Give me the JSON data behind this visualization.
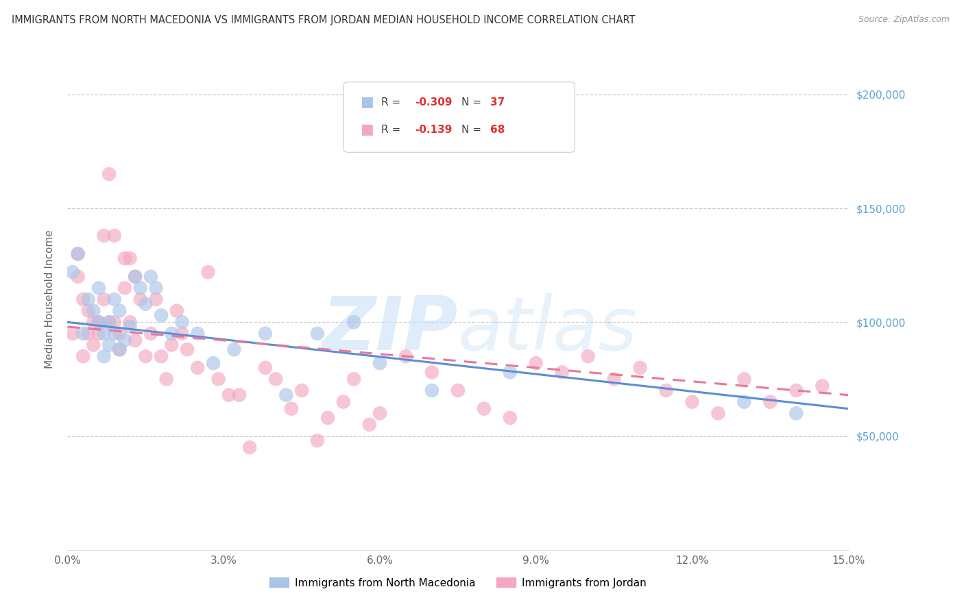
{
  "title": "IMMIGRANTS FROM NORTH MACEDONIA VS IMMIGRANTS FROM JORDAN MEDIAN HOUSEHOLD INCOME CORRELATION CHART",
  "source": "Source: ZipAtlas.com",
  "ylabel": "Median Household Income",
  "y_ticks": [
    50000,
    100000,
    150000,
    200000
  ],
  "y_tick_labels": [
    "$50,000",
    "$100,000",
    "$150,000",
    "$200,000"
  ],
  "x_ticks": [
    0.0,
    0.03,
    0.06,
    0.09,
    0.12,
    0.15
  ],
  "x_tick_labels": [
    "0.0%",
    "3.0%",
    "6.0%",
    "9.0%",
    "12.0%",
    "15.0%"
  ],
  "xlim": [
    0.0,
    0.15
  ],
  "ylim": [
    0,
    220000
  ],
  "watermark_zip": "ZIP",
  "watermark_atlas": "atlas",
  "series1_name": "Immigrants from North Macedonia",
  "series1_color": "#aac4e8",
  "series1_line_color": "#5b8dd9",
  "series2_name": "Immigrants from Jordan",
  "series2_color": "#f4a8bf",
  "series2_line_color": "#e87899",
  "north_macedonia_x": [
    0.001,
    0.002,
    0.003,
    0.004,
    0.005,
    0.006,
    0.006,
    0.007,
    0.007,
    0.008,
    0.008,
    0.009,
    0.009,
    0.01,
    0.01,
    0.011,
    0.012,
    0.013,
    0.014,
    0.015,
    0.016,
    0.017,
    0.018,
    0.02,
    0.022,
    0.025,
    0.028,
    0.032,
    0.038,
    0.042,
    0.048,
    0.055,
    0.06,
    0.07,
    0.085,
    0.13,
    0.14
  ],
  "north_macedonia_y": [
    122000,
    130000,
    95000,
    110000,
    105000,
    100000,
    115000,
    85000,
    95000,
    100000,
    90000,
    110000,
    95000,
    88000,
    105000,
    92000,
    98000,
    120000,
    115000,
    108000,
    120000,
    115000,
    103000,
    95000,
    100000,
    95000,
    82000,
    88000,
    95000,
    68000,
    95000,
    100000,
    82000,
    70000,
    78000,
    65000,
    60000
  ],
  "jordan_x": [
    0.001,
    0.002,
    0.002,
    0.003,
    0.003,
    0.004,
    0.004,
    0.005,
    0.005,
    0.006,
    0.006,
    0.007,
    0.007,
    0.008,
    0.008,
    0.009,
    0.009,
    0.01,
    0.01,
    0.011,
    0.011,
    0.012,
    0.012,
    0.013,
    0.013,
    0.014,
    0.015,
    0.016,
    0.017,
    0.018,
    0.019,
    0.02,
    0.021,
    0.022,
    0.023,
    0.025,
    0.027,
    0.029,
    0.031,
    0.033,
    0.035,
    0.038,
    0.04,
    0.043,
    0.045,
    0.048,
    0.05,
    0.053,
    0.055,
    0.058,
    0.06,
    0.065,
    0.07,
    0.075,
    0.08,
    0.085,
    0.09,
    0.095,
    0.1,
    0.105,
    0.11,
    0.115,
    0.12,
    0.125,
    0.13,
    0.135,
    0.14,
    0.145
  ],
  "jordan_y": [
    95000,
    130000,
    120000,
    110000,
    85000,
    105000,
    95000,
    100000,
    90000,
    100000,
    95000,
    110000,
    138000,
    165000,
    100000,
    138000,
    100000,
    95000,
    88000,
    128000,
    115000,
    128000,
    100000,
    120000,
    92000,
    110000,
    85000,
    95000,
    110000,
    85000,
    75000,
    90000,
    105000,
    95000,
    88000,
    80000,
    122000,
    75000,
    68000,
    68000,
    45000,
    80000,
    75000,
    62000,
    70000,
    48000,
    58000,
    65000,
    75000,
    55000,
    60000,
    85000,
    78000,
    70000,
    62000,
    58000,
    82000,
    78000,
    85000,
    75000,
    80000,
    70000,
    65000,
    60000,
    75000,
    65000,
    70000,
    72000
  ],
  "nm_trend_x0": 0.0,
  "nm_trend_y0": 100000,
  "nm_trend_x1": 0.15,
  "nm_trend_y1": 62000,
  "j_trend_x0": 0.0,
  "j_trend_y0": 98000,
  "j_trend_x1": 0.15,
  "j_trend_y1": 68000
}
